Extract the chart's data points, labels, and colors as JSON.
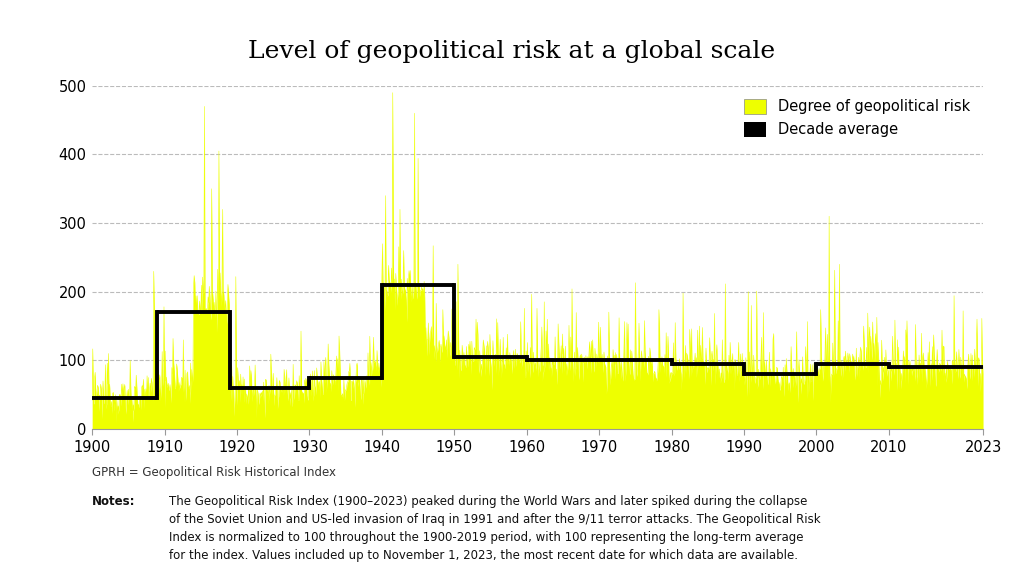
{
  "title": "Level of geopolitical risk at a global scale",
  "title_fontsize": 18,
  "xlim": [
    1900,
    2023
  ],
  "ylim": [
    0,
    500
  ],
  "yticks": [
    0,
    100,
    200,
    300,
    400,
    500
  ],
  "xticks": [
    1900,
    1910,
    1920,
    1930,
    1940,
    1950,
    1960,
    1970,
    1980,
    1990,
    2000,
    2010,
    2023
  ],
  "line_color": "#EEFF00",
  "step_color": "#000000",
  "background_color": "#ffffff",
  "grid_color": "#bbbbbb",
  "legend_labels": [
    "Degree of geopolitical risk",
    "Decade average"
  ],
  "legend_colors": [
    "#EEFF00",
    "#000000"
  ],
  "note_gprh": "GPRH = Geopolitical Risk Historical Index",
  "note_bold": "Notes:",
  "note_text": "The Geopolitical Risk Index (1900–2023) peaked during the World Wars and later spiked during the collapse\nof the Soviet Union and US-led invasion of Iraq in 1991 and after the 9/11 terror attacks. The Geopolitical Risk\nIndex is normalized to 100 throughout the 1900-2019 period, with 100 representing the long-term average\nfor the index. Values included up to November 1, 2023, the most recent date for which data are available.",
  "decade_averages": [
    {
      "start": 1900,
      "end": 1909,
      "value": 45
    },
    {
      "start": 1909,
      "end": 1919,
      "value": 170
    },
    {
      "start": 1919,
      "end": 1930,
      "value": 60
    },
    {
      "start": 1930,
      "end": 1940,
      "value": 75
    },
    {
      "start": 1940,
      "end": 1950,
      "value": 210
    },
    {
      "start": 1950,
      "end": 1960,
      "value": 105
    },
    {
      "start": 1960,
      "end": 1970,
      "value": 100
    },
    {
      "start": 1970,
      "end": 1980,
      "value": 100
    },
    {
      "start": 1980,
      "end": 1990,
      "value": 95
    },
    {
      "start": 1990,
      "end": 2000,
      "value": 80
    },
    {
      "start": 2000,
      "end": 2010,
      "value": 95
    },
    {
      "start": 2010,
      "end": 2020,
      "value": 90
    },
    {
      "start": 2020,
      "end": 2023,
      "value": 90
    }
  ]
}
